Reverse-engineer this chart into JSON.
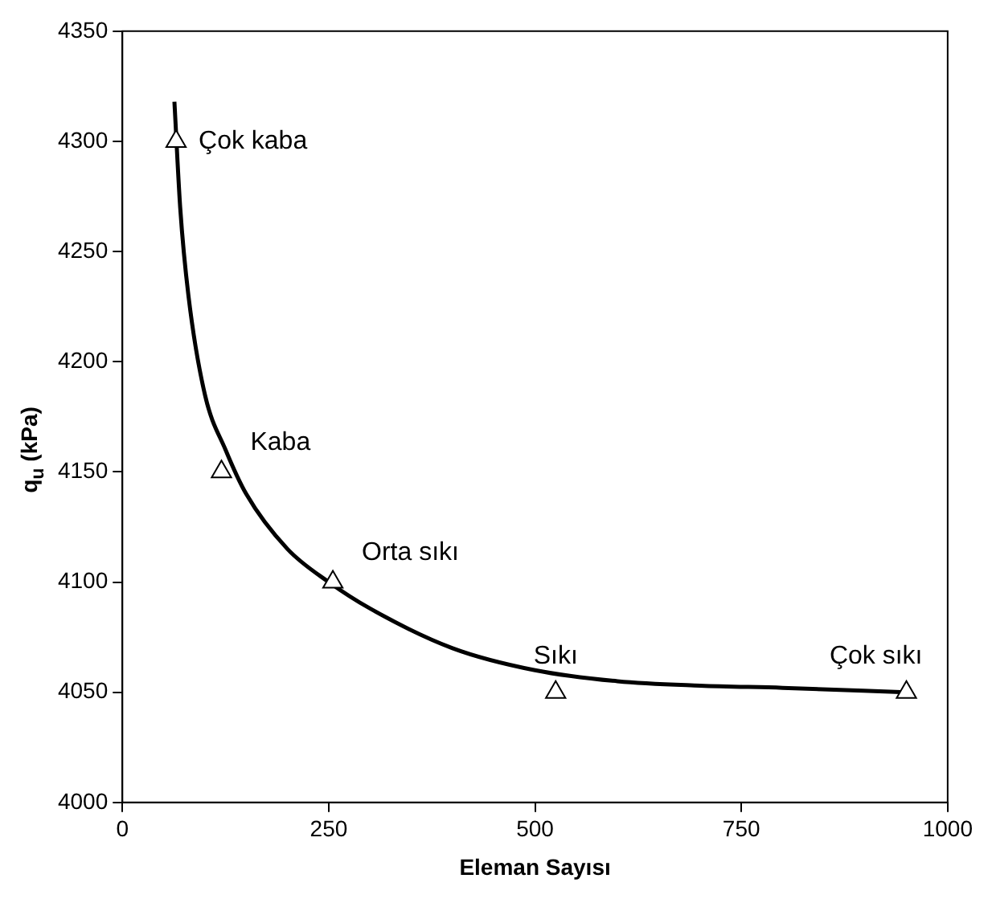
{
  "chart_data": {
    "type": "scatter",
    "xlabel": "Eleman Sayısı",
    "ylabel": "q$_{u}$ (kPa)",
    "xlim": [
      0,
      1000
    ],
    "xticks": [
      0,
      250,
      500,
      750,
      1000
    ],
    "ylim": [
      4000,
      4350
    ],
    "yticks": [
      4000,
      4050,
      4100,
      4150,
      4200,
      4250,
      4300,
      4350
    ],
    "grid": false,
    "legend": false,
    "series": [
      {
        "color": "#000000",
        "marker": "triangle",
        "x": [
          65,
          120,
          255,
          525,
          950
        ],
        "values": [
          4300,
          4150,
          4100,
          4050,
          4050
        ]
      },
      {
        "type": "line",
        "color": "#000000",
        "marker": "none",
        "x": [
          63,
          70,
          80,
          100,
          125,
          150,
          200,
          250,
          300,
          400,
          500,
          600,
          700,
          800,
          950
        ],
        "values": [
          4318,
          4270,
          4230,
          4185,
          4160,
          4140,
          4115,
          4100,
          4088,
          4070,
          4060,
          4055,
          4053,
          4052,
          4050
        ]
      }
    ],
    "annotations": [
      {
        "text": "Çok kaba",
        "x": 65,
        "y": 4300
      },
      {
        "text": "Kaba",
        "x": 120,
        "y": 4150
      },
      {
        "text": "Orta sıkı",
        "x": 255,
        "y": 4100
      },
      {
        "text": "Sıkı",
        "x": 525,
        "y": 4050
      },
      {
        "text": "Çok sıkı",
        "x": 950,
        "y": 4050
      }
    ]
  }
}
